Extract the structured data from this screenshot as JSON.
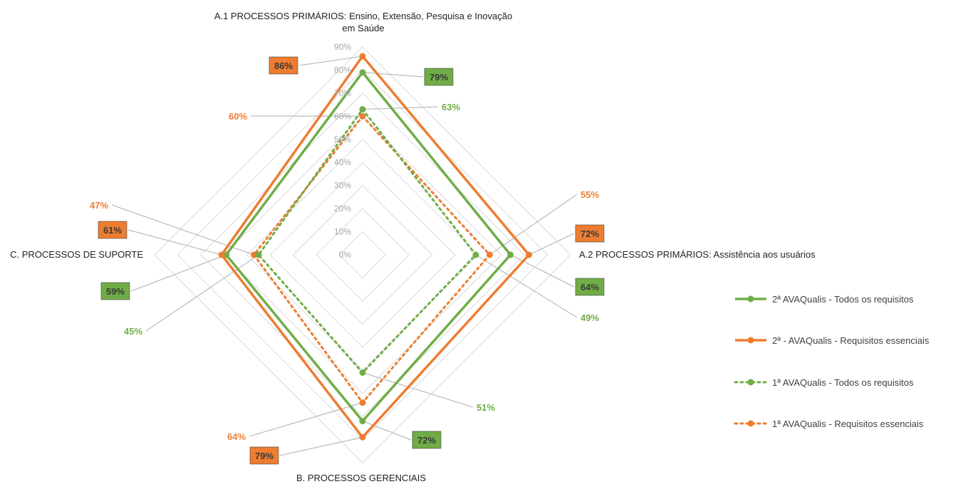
{
  "chart_data": {
    "type": "radar",
    "axes": [
      "A.1 PROCESSOS PRIMÁRIOS: Ensino, Extensão, Pesquisa e Inovação em Saúde",
      "A.2 PROCESSOS PRIMÁRIOS: Assistência aos usuários",
      "B. PROCESSOS GERENCIAIS",
      "C. PROCESSOS DE SUPORTE"
    ],
    "axis_title_lines": [
      [
        "A.1 PROCESSOS PRIMÁRIOS: Ensino, Extensão, Pesquisa e Inovação",
        "em Saúde"
      ],
      [
        "A.2 PROCESSOS PRIMÁRIOS: Assistência aos usuários"
      ],
      [
        "B. PROCESSOS GERENCIAIS"
      ],
      [
        "C. PROCESSOS DE SUPORTE"
      ]
    ],
    "radial_ticks": [
      "0%",
      "10%",
      "20%",
      "30%",
      "40%",
      "50%",
      "60%",
      "70%",
      "80%",
      "90%"
    ],
    "range": [
      0,
      90
    ],
    "grid": true,
    "legend_position": "right",
    "series": [
      {
        "name": "2ª AVAQualis - Todos os requisitos",
        "values": [
          79,
          64,
          72,
          59
        ],
        "labels": [
          "79%",
          "64%",
          "72%",
          "59%"
        ],
        "color": "#70ad47",
        "style": "solid",
        "label_style": "boxed"
      },
      {
        "name": "2ª - AVAQualis - Requisitos essenciais",
        "values": [
          86,
          72,
          79,
          61
        ],
        "labels": [
          "86%",
          "72%",
          "79%",
          "61%"
        ],
        "color": "#ed7d31",
        "style": "solid",
        "label_style": "boxed"
      },
      {
        "name": "1ª AVAQualis - Todos os requisitos",
        "values": [
          63,
          49,
          51,
          45
        ],
        "labels": [
          "63%",
          "49%",
          "51%",
          "45%"
        ],
        "color": "#70ad47",
        "style": "dotted",
        "label_style": "plain"
      },
      {
        "name": "1ª AVAQualis - Requisitos essenciais",
        "values": [
          60,
          55,
          64,
          47
        ],
        "labels": [
          "60%",
          "55%",
          "64%",
          "47%"
        ],
        "color": "#ed7d31",
        "style": "dotted",
        "label_style": "plain"
      }
    ]
  }
}
